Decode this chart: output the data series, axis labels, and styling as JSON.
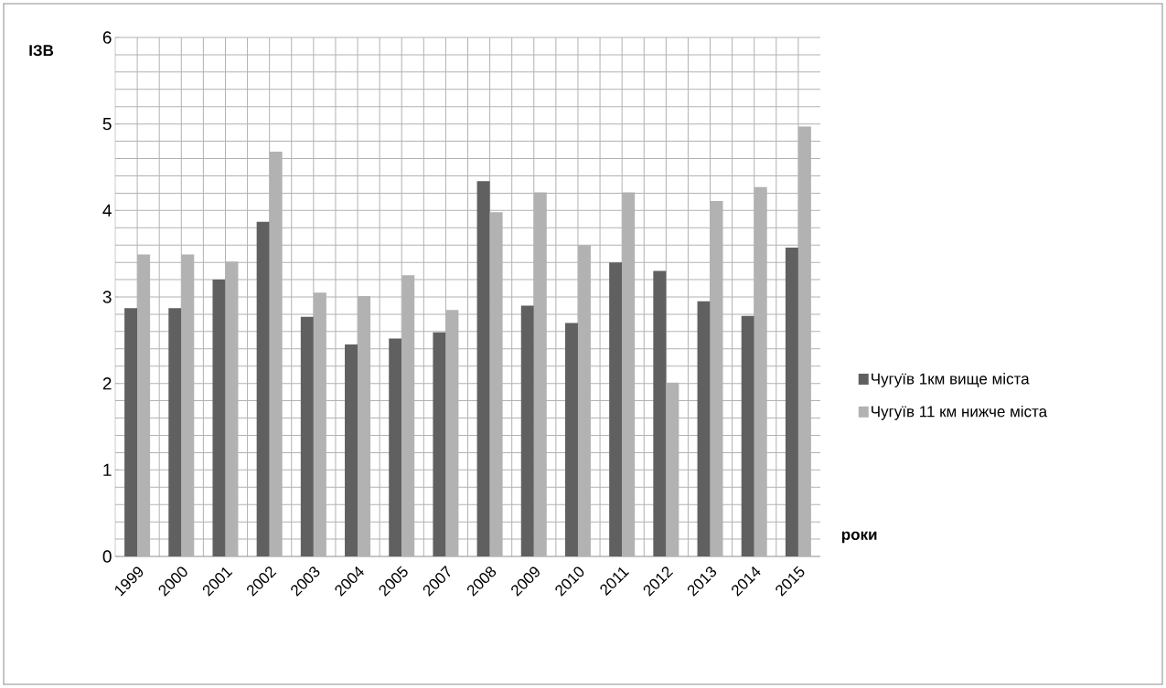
{
  "chart_data": {
    "type": "bar",
    "xlabel": "роки",
    "ylabel": "ІЗВ",
    "categories": [
      "1999",
      "2000",
      "2001",
      "2002",
      "2003",
      "2004",
      "2005",
      "2007",
      "2008",
      "2009",
      "2010",
      "2011",
      "2012",
      "2013",
      "2014",
      "2015"
    ],
    "series": [
      {
        "name": "Чугуїв 1км вище міста",
        "color": "#606060",
        "values": [
          2.87,
          2.87,
          3.2,
          3.87,
          2.77,
          2.45,
          2.52,
          2.59,
          4.34,
          2.9,
          2.7,
          3.4,
          3.3,
          2.95,
          2.78,
          3.57
        ]
      },
      {
        "name": "Чугуїв 11 км нижче міста",
        "color": "#b2b2b2",
        "values": [
          3.49,
          3.49,
          3.41,
          4.68,
          3.05,
          3.01,
          3.25,
          2.85,
          3.98,
          4.21,
          3.6,
          4.21,
          2.01,
          4.11,
          4.27,
          4.97
        ]
      }
    ],
    "ylim": [
      0,
      6
    ],
    "yticks": [
      0,
      1,
      2,
      3,
      4,
      5,
      6
    ],
    "grid": true,
    "legend": "right"
  }
}
